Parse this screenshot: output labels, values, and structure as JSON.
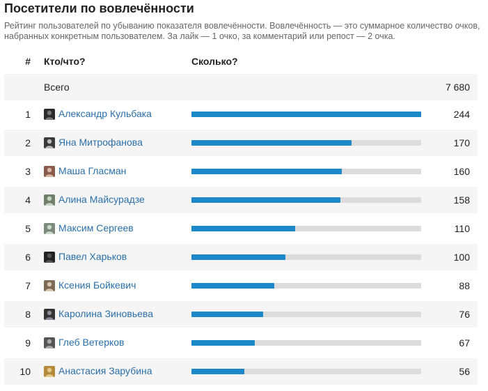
{
  "title": "Посетители по вовлечённости",
  "description": "Рейтинг пользователей по убыванию показателя вовлечённости. Вовлечённость — это суммарное количество очков, набранных конкретным пользователем. За лайк — 1 очко, за комментарий или репост — 2 очка.",
  "columns": {
    "num": "#",
    "who": "Кто/что?",
    "count": "Сколько?"
  },
  "total": {
    "label": "Всего",
    "value": "7 680"
  },
  "colors": {
    "bar": "#1c88c7",
    "track": "#dcdcdc",
    "link": "#2a6fa8",
    "row_alt": "#f5f5f5"
  },
  "rows": [
    {
      "rank": "1",
      "name": "Александр Кульбака",
      "value": "244",
      "avatar_icon": "user-avatar-icon"
    },
    {
      "rank": "2",
      "name": "Яна Митрофанова",
      "value": "170",
      "avatar_icon": "user-avatar-icon"
    },
    {
      "rank": "3",
      "name": "Маша Гласман",
      "value": "160",
      "avatar_icon": "user-avatar-icon"
    },
    {
      "rank": "4",
      "name": "Алина Майсурадзе",
      "value": "158",
      "avatar_icon": "user-avatar-icon"
    },
    {
      "rank": "5",
      "name": "Максим Сергеев",
      "value": "110",
      "avatar_icon": "user-avatar-icon"
    },
    {
      "rank": "6",
      "name": "Павел Харьков",
      "value": "100",
      "avatar_icon": "user-avatar-icon"
    },
    {
      "rank": "7",
      "name": "Ксения Бойкевич",
      "value": "88",
      "avatar_icon": "user-avatar-icon"
    },
    {
      "rank": "8",
      "name": "Каролина Зиновьева",
      "value": "76",
      "avatar_icon": "user-avatar-icon"
    },
    {
      "rank": "9",
      "name": "Глеб Ветерков",
      "value": "67",
      "avatar_icon": "user-avatar-icon"
    },
    {
      "rank": "10",
      "name": "Анастасия Зарубина",
      "value": "56",
      "avatar_icon": "user-avatar-icon"
    }
  ]
}
